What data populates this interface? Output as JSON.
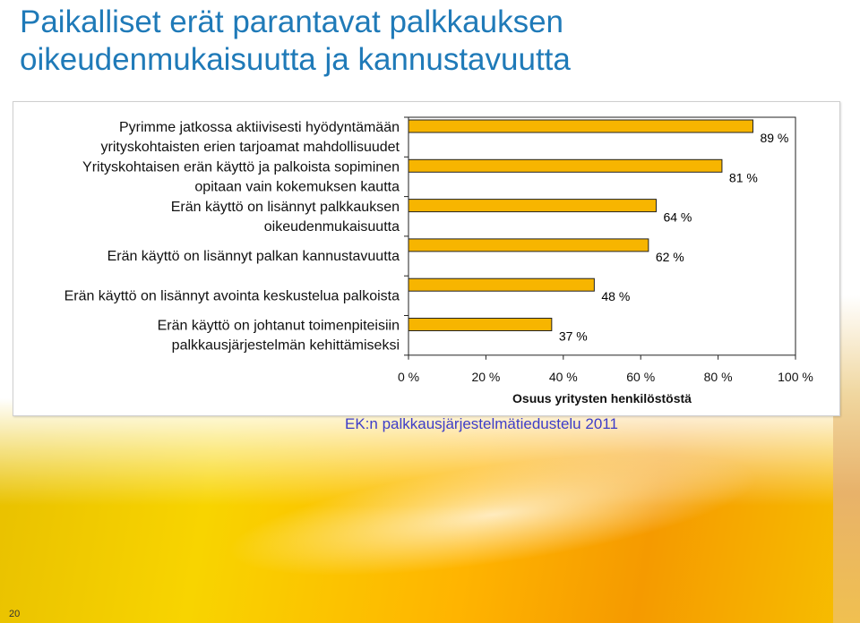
{
  "title_line1": "Paikalliset erät parantavat palkkauksen",
  "title_line2": "oikeudenmukaisuutta ja kannustavuutta",
  "source_note": "EK:n palkkausjärjestelmätiedustelu 2011",
  "page_number": "20",
  "colors": {
    "title": "#1f7ab8",
    "bar_fill": "#f7b500",
    "bar_stroke": "#222222",
    "source": "#3d3dc8"
  },
  "chart_data": {
    "type": "bar",
    "orientation": "horizontal",
    "categories": [
      [
        "Pyrimme jatkossa aktiivisesti hyödyntämään",
        "yrityskohtaisten erien tarjoamat mahdollisuudet"
      ],
      [
        "Yrityskohtaisen erän käyttö ja palkoista sopiminen",
        "opitaan vain kokemuksen kautta"
      ],
      [
        "Erän käyttö on lisännyt palkkauksen",
        "oikeudenmukaisuutta"
      ],
      [
        "Erän käyttö on lisännyt palkan kannustavuutta"
      ],
      [
        "Erän käyttö on lisännyt avointa keskustelua palkoista"
      ],
      [
        "Erän käyttö on johtanut toimenpiteisiin",
        "palkkausjärjestelmän kehittämiseksi"
      ]
    ],
    "values": [
      89,
      81,
      64,
      62,
      48,
      37
    ],
    "value_labels": [
      "89 %",
      "81 %",
      "64 %",
      "62 %",
      "48 %",
      "37 %"
    ],
    "xlabel": "Osuus yritysten henkilöstöstä",
    "xlim": [
      0,
      100
    ],
    "xticks": [
      0,
      20,
      40,
      60,
      80,
      100
    ],
    "xtick_labels": [
      "0 %",
      "20 %",
      "40 %",
      "60 %",
      "80 %",
      "100 %"
    ],
    "grid": false,
    "legend": "none"
  }
}
